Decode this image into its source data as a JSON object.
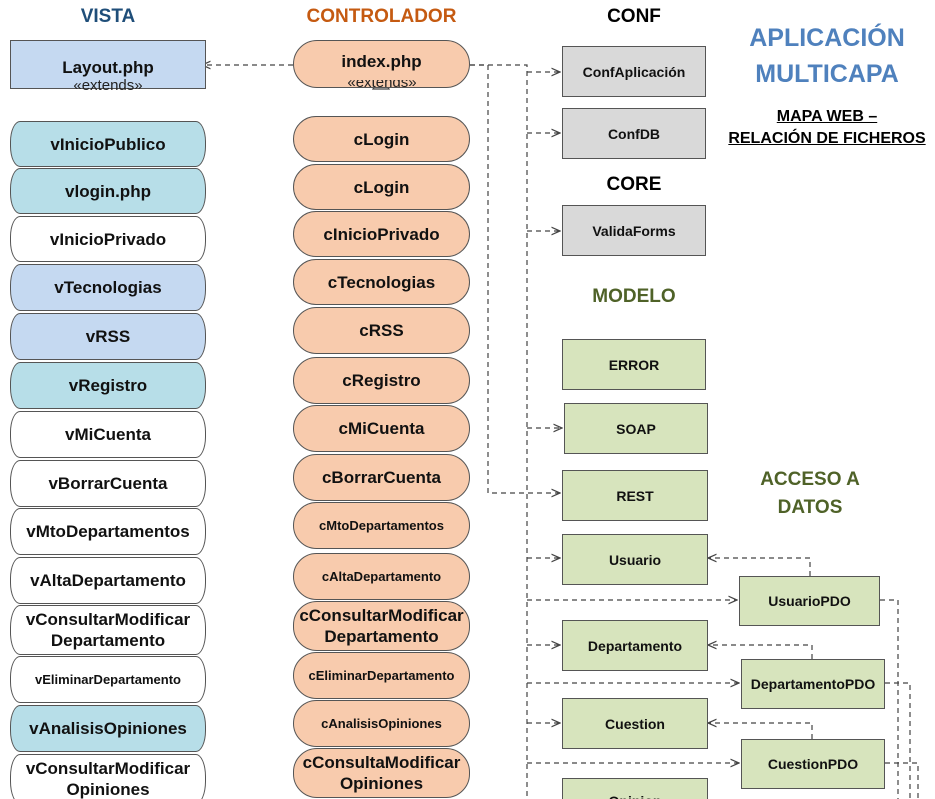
{
  "headers": {
    "vista": "VISTA",
    "controlador": "CONTROLADOR",
    "conf": "CONF",
    "core": "CORE",
    "modelo": "MODELO",
    "acceso": "ACCESO A DATOS"
  },
  "title": {
    "line1": "APLICACIÓN",
    "line2": "MULTICAPA",
    "subtitle1": "MAPA WEB –",
    "subtitle2": "RELACIÓN DE FICHEROS"
  },
  "extends_label": "«extends»",
  "layout_label": "Layout.php",
  "index_label": "index.php",
  "vista": [
    {
      "label": "vInicioPublico",
      "color": "#B7DEE8"
    },
    {
      "label": "vlogin.php",
      "color": "#B7DEE8"
    },
    {
      "label": "vInicioPrivado",
      "color": "#FFFFFF"
    },
    {
      "label": "vTecnologias",
      "color": "#C5D9F1"
    },
    {
      "label": "vRSS",
      "color": "#C5D9F1"
    },
    {
      "label": "vRegistro",
      "color": "#B7DEE8"
    },
    {
      "label": "vMiCuenta",
      "color": "#FFFFFF"
    },
    {
      "label": "vBorrarCuenta",
      "color": "#FFFFFF"
    },
    {
      "label": "vMtoDepartamentos",
      "color": "#FFFFFF"
    },
    {
      "label": "vAltaDepartamento",
      "color": "#FFFFFF"
    },
    {
      "label": "vConsultarModificar Departamento",
      "color": "#FFFFFF"
    },
    {
      "label": "vEliminarDepartamento",
      "color": "#FFFFFF"
    },
    {
      "label": "vAnalisisOpiniones",
      "color": "#B7DEE8"
    },
    {
      "label": "vConsultarModificar Opiniones",
      "color": "#FFFFFF"
    }
  ],
  "controlador": [
    {
      "label": "cLogin"
    },
    {
      "label": "cLogin"
    },
    {
      "label": "cInicioPrivado"
    },
    {
      "label": "cTecnologias"
    },
    {
      "label": "cRSS"
    },
    {
      "label": "cRegistro"
    },
    {
      "label": "cMiCuenta"
    },
    {
      "label": "cBorrarCuenta"
    },
    {
      "label": "cMtoDepartamentos"
    },
    {
      "label": "cAltaDepartamento"
    },
    {
      "label": "cConsultarModificar Departamento"
    },
    {
      "label": "cEliminarDepartamento"
    },
    {
      "label": "cAnalisisOpiniones"
    },
    {
      "label": "cConsultaModificar Opiniones"
    }
  ],
  "conf": [
    "ConfAplicación",
    "ConfDB"
  ],
  "core": [
    "ValidaForms"
  ],
  "modelo": [
    "ERROR",
    "SOAP",
    "REST"
  ],
  "acceso": {
    "clases": [
      "Usuario",
      "Departamento",
      "Cuestion",
      "Opinion"
    ],
    "pdo": [
      "UsuarioPDO",
      "DepartamentoPDO",
      "CuestionPDO"
    ]
  }
}
